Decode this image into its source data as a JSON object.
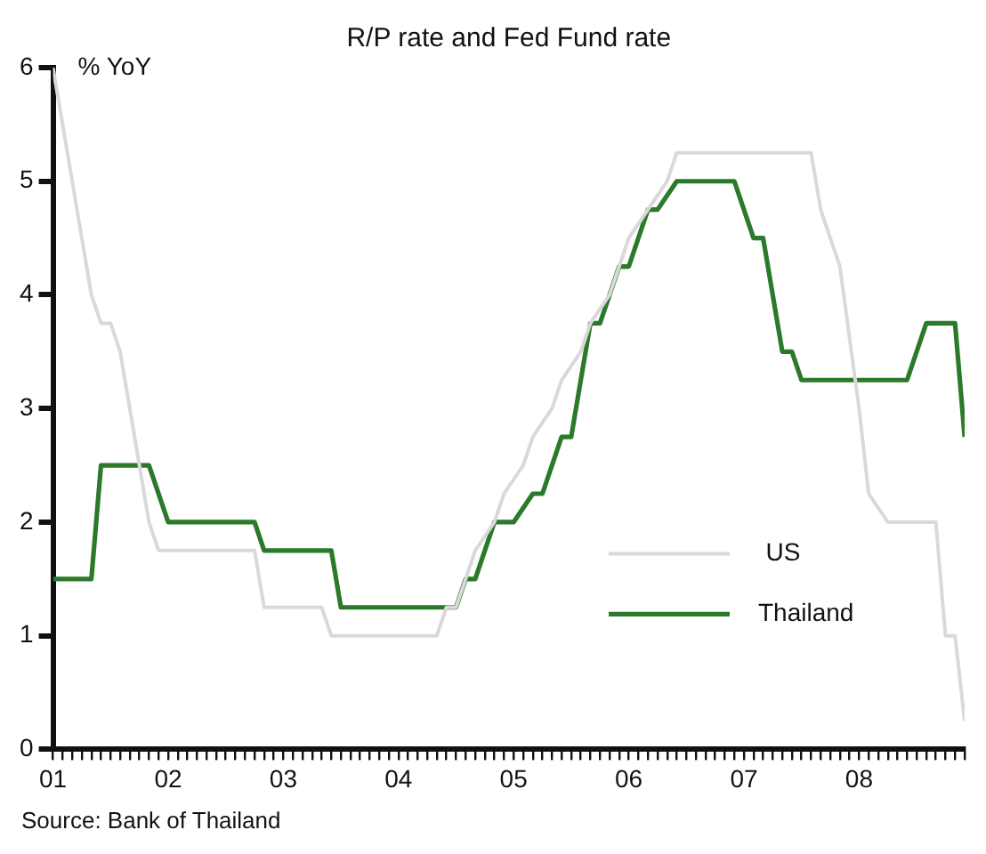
{
  "chart_data": {
    "type": "line",
    "title": "R/P rate and Fed Fund rate",
    "ylabel": "% YoY",
    "annotations": [
      "Source: Bank of Thailand"
    ],
    "series": [
      {
        "name": "US",
        "color": "#d9d9d9",
        "x": [
          "2001-01",
          "2001-05",
          "2001-06",
          "2001-07",
          "2001-08",
          "2001-11",
          "2001-12",
          "2002-10",
          "2002-11",
          "2003-05",
          "2003-06",
          "2004-05",
          "2004-06",
          "2004-07",
          "2004-08",
          "2004-09",
          "2004-11",
          "2004-12",
          "2005-02",
          "2005-03",
          "2005-05",
          "2005-06",
          "2005-08",
          "2005-09",
          "2005-11",
          "2005-12",
          "2006-01",
          "2006-03",
          "2006-05",
          "2006-06",
          "2007-08",
          "2007-09",
          "2007-10",
          "2007-11",
          "2008-01",
          "2008-02",
          "2008-04",
          "2008-09",
          "2008-10",
          "2008-11",
          "2008-12"
        ],
        "values": [
          6.0,
          4.0,
          3.75,
          3.75,
          3.5,
          2.0,
          1.75,
          1.75,
          1.25,
          1.25,
          1.0,
          1.0,
          1.25,
          1.25,
          1.5,
          1.75,
          2.0,
          2.25,
          2.5,
          2.75,
          3.0,
          3.25,
          3.5,
          3.75,
          4.0,
          4.25,
          4.5,
          4.75,
          5.0,
          5.25,
          5.25,
          4.75,
          4.5,
          4.25,
          3.0,
          2.25,
          2.0,
          2.0,
          1.0,
          1.0,
          0.25
        ]
      },
      {
        "name": "Thailand",
        "color": "#2a7a2a",
        "x": [
          "2001-01",
          "2001-05",
          "2001-06",
          "2001-11",
          "2002-01",
          "2002-10",
          "2002-11",
          "2003-06",
          "2003-07",
          "2004-07",
          "2004-08",
          "2004-09",
          "2004-10",
          "2004-11",
          "2005-01",
          "2005-03",
          "2005-04",
          "2005-06",
          "2005-07",
          "2005-09",
          "2005-10",
          "2005-12",
          "2006-01",
          "2006-03",
          "2006-04",
          "2006-06",
          "2006-12",
          "2007-02",
          "2007-03",
          "2007-05",
          "2007-06",
          "2007-07",
          "2008-06",
          "2008-08",
          "2008-11",
          "2008-12"
        ],
        "values": [
          1.5,
          1.5,
          2.5,
          2.5,
          2.0,
          2.0,
          1.75,
          1.75,
          1.25,
          1.25,
          1.5,
          1.5,
          1.75,
          2.0,
          2.0,
          2.25,
          2.25,
          2.75,
          2.75,
          3.75,
          3.75,
          4.25,
          4.25,
          4.75,
          4.75,
          5.0,
          5.0,
          4.5,
          4.5,
          3.5,
          3.5,
          3.25,
          3.25,
          3.75,
          3.75,
          2.75
        ]
      }
    ],
    "xlim": [
      "2001-01",
      "2008-12"
    ],
    "xticks": [
      {
        "value": "2001-01",
        "label": "01"
      },
      {
        "value": "2001-02",
        "label": null
      },
      {
        "value": "2001-03",
        "label": null
      },
      {
        "value": "2001-04",
        "label": null
      },
      {
        "value": "2001-05",
        "label": null
      },
      {
        "value": "2001-06",
        "label": null
      },
      {
        "value": "2001-07",
        "label": null
      },
      {
        "value": "2001-08",
        "label": null
      },
      {
        "value": "2001-09",
        "label": null
      },
      {
        "value": "2001-10",
        "label": null
      },
      {
        "value": "2001-11",
        "label": null
      },
      {
        "value": "2001-12",
        "label": null
      },
      {
        "value": "2002-01",
        "label": "02"
      },
      {
        "value": "2002-02",
        "label": null
      },
      {
        "value": "2002-03",
        "label": null
      },
      {
        "value": "2002-04",
        "label": null
      },
      {
        "value": "2002-05",
        "label": null
      },
      {
        "value": "2002-06",
        "label": null
      },
      {
        "value": "2002-07",
        "label": null
      },
      {
        "value": "2002-08",
        "label": null
      },
      {
        "value": "2002-09",
        "label": null
      },
      {
        "value": "2002-10",
        "label": null
      },
      {
        "value": "2002-11",
        "label": null
      },
      {
        "value": "2002-12",
        "label": null
      },
      {
        "value": "2003-01",
        "label": "03"
      },
      {
        "value": "2003-02",
        "label": null
      },
      {
        "value": "2003-03",
        "label": null
      },
      {
        "value": "2003-04",
        "label": null
      },
      {
        "value": "2003-05",
        "label": null
      },
      {
        "value": "2003-06",
        "label": null
      },
      {
        "value": "2003-07",
        "label": null
      },
      {
        "value": "2003-08",
        "label": null
      },
      {
        "value": "2003-09",
        "label": null
      },
      {
        "value": "2003-10",
        "label": null
      },
      {
        "value": "2003-11",
        "label": null
      },
      {
        "value": "2003-12",
        "label": null
      },
      {
        "value": "2004-01",
        "label": "04"
      },
      {
        "value": "2004-02",
        "label": null
      },
      {
        "value": "2004-03",
        "label": null
      },
      {
        "value": "2004-04",
        "label": null
      },
      {
        "value": "2004-05",
        "label": null
      },
      {
        "value": "2004-06",
        "label": null
      },
      {
        "value": "2004-07",
        "label": null
      },
      {
        "value": "2004-08",
        "label": null
      },
      {
        "value": "2004-09",
        "label": null
      },
      {
        "value": "2004-10",
        "label": null
      },
      {
        "value": "2004-11",
        "label": null
      },
      {
        "value": "2004-12",
        "label": null
      },
      {
        "value": "2005-01",
        "label": "05"
      },
      {
        "value": "2005-02",
        "label": null
      },
      {
        "value": "2005-03",
        "label": null
      },
      {
        "value": "2005-04",
        "label": null
      },
      {
        "value": "2005-05",
        "label": null
      },
      {
        "value": "2005-06",
        "label": null
      },
      {
        "value": "2005-07",
        "label": null
      },
      {
        "value": "2005-08",
        "label": null
      },
      {
        "value": "2005-09",
        "label": null
      },
      {
        "value": "2005-10",
        "label": null
      },
      {
        "value": "2005-11",
        "label": null
      },
      {
        "value": "2005-12",
        "label": null
      },
      {
        "value": "2006-01",
        "label": "06"
      },
      {
        "value": "2006-02",
        "label": null
      },
      {
        "value": "2006-03",
        "label": null
      },
      {
        "value": "2006-04",
        "label": null
      },
      {
        "value": "2006-05",
        "label": null
      },
      {
        "value": "2006-06",
        "label": null
      },
      {
        "value": "2006-07",
        "label": null
      },
      {
        "value": "2006-08",
        "label": null
      },
      {
        "value": "2006-09",
        "label": null
      },
      {
        "value": "2006-10",
        "label": null
      },
      {
        "value": "2006-11",
        "label": null
      },
      {
        "value": "2006-12",
        "label": null
      },
      {
        "value": "2007-01",
        "label": "07"
      },
      {
        "value": "2007-02",
        "label": null
      },
      {
        "value": "2007-03",
        "label": null
      },
      {
        "value": "2007-04",
        "label": null
      },
      {
        "value": "2007-05",
        "label": null
      },
      {
        "value": "2007-06",
        "label": null
      },
      {
        "value": "2007-07",
        "label": null
      },
      {
        "value": "2007-08",
        "label": null
      },
      {
        "value": "2007-09",
        "label": null
      },
      {
        "value": "2007-10",
        "label": null
      },
      {
        "value": "2007-11",
        "label": null
      },
      {
        "value": "2007-12",
        "label": null
      },
      {
        "value": "2008-01",
        "label": "08"
      },
      {
        "value": "2008-02",
        "label": null
      },
      {
        "value": "2008-03",
        "label": null
      },
      {
        "value": "2008-04",
        "label": null
      },
      {
        "value": "2008-05",
        "label": null
      },
      {
        "value": "2008-06",
        "label": null
      },
      {
        "value": "2008-07",
        "label": null
      },
      {
        "value": "2008-08",
        "label": null
      },
      {
        "value": "2008-09",
        "label": null
      },
      {
        "value": "2008-10",
        "label": null
      },
      {
        "value": "2008-11",
        "label": null
      },
      {
        "value": "2008-12",
        "label": null
      }
    ],
    "ylim": [
      0,
      6
    ],
    "yticks": [
      0,
      1,
      2,
      3,
      4,
      5,
      6
    ],
    "grid": false,
    "legend": "bottom right",
    "marker": "none",
    "line_style": "solid"
  }
}
